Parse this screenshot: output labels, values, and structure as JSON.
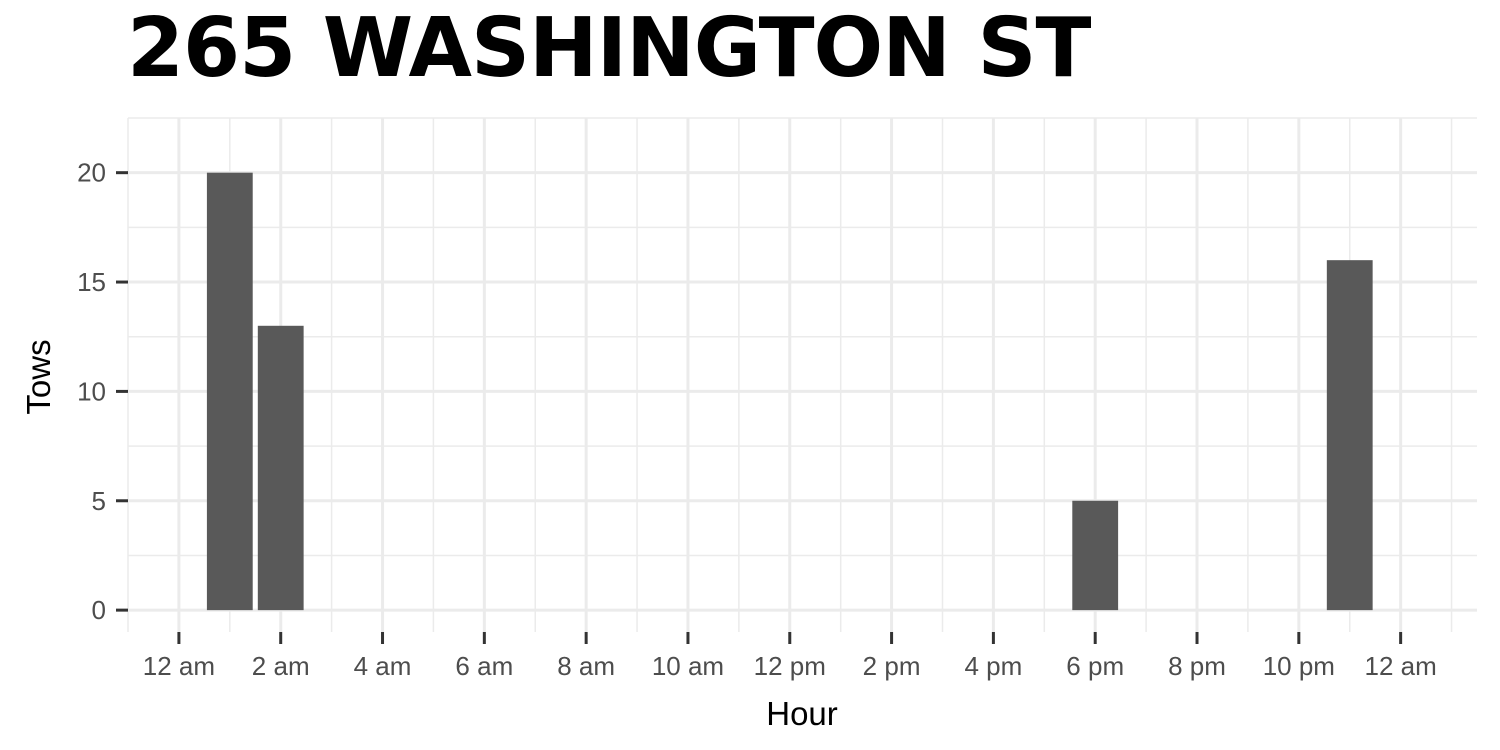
{
  "chart_data": {
    "type": "bar",
    "title": "265 WASHINGTON ST",
    "xlabel": "Hour",
    "ylabel": "Tows",
    "x_ticks": [
      "12 am",
      "2 am",
      "4 am",
      "6 am",
      "8 am",
      "10 am",
      "12 pm",
      "2 pm",
      "4 pm",
      "6 pm",
      "8 pm",
      "10 pm",
      "12 am"
    ],
    "y_ticks": [
      "0",
      "5",
      "10",
      "15",
      "20"
    ],
    "xlim": [
      -1,
      25.5
    ],
    "ylim": [
      -1,
      22.5
    ],
    "grid": true,
    "bar_color": "#595959",
    "bars": [
      {
        "hour": 1,
        "value": 20
      },
      {
        "hour": 2,
        "value": 13
      },
      {
        "hour": 18,
        "value": 5
      },
      {
        "hour": 23,
        "value": 16
      }
    ]
  }
}
